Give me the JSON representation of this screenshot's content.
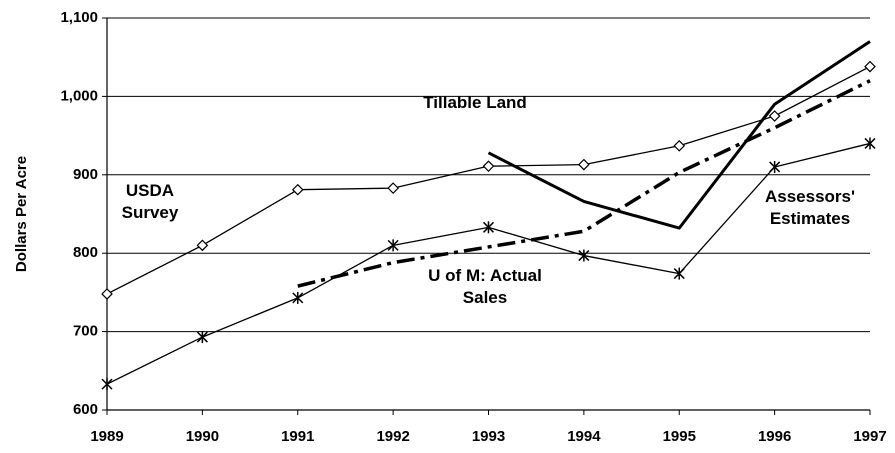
{
  "chart_data": {
    "type": "line",
    "y_label": "Dollars Per Acre",
    "categories": [
      "1989",
      "1990",
      "1991",
      "1992",
      "1993",
      "1994",
      "1995",
      "1996",
      "1997"
    ],
    "ylim": [
      600,
      1100
    ],
    "yticks": [
      600,
      700,
      800,
      900,
      {
        "value": 1000,
        "label": "1,000"
      },
      {
        "value": 1100,
        "label": "1,100"
      }
    ],
    "grid": true,
    "series": [
      {
        "name": "USDA Survey",
        "color": "#000000",
        "line_width": 1.3,
        "dash": "solid",
        "marker": "diamond",
        "values": [
          748,
          810,
          881,
          883,
          911,
          913,
          937,
          975,
          1038
        ]
      },
      {
        "name": "Assessors' Estimates",
        "color": "#000000",
        "line_width": 1.3,
        "dash": "solid",
        "marker": "asterisk",
        "values": [
          633,
          693,
          743,
          810,
          833,
          797,
          774,
          910,
          940
        ]
      },
      {
        "name": "U of M: Actual Sales",
        "color": "#000000",
        "line_width": 3.5,
        "dash": "dash-dot",
        "marker": "none",
        "values": [
          null,
          null,
          758,
          788,
          808,
          828,
          903,
          960,
          1020
        ]
      },
      {
        "name": "Tillable Land",
        "color": "#000000",
        "line_width": 3,
        "dash": "solid",
        "marker": "none",
        "values": [
          null,
          null,
          null,
          null,
          928,
          866,
          832,
          990,
          1070
        ]
      }
    ]
  }
}
